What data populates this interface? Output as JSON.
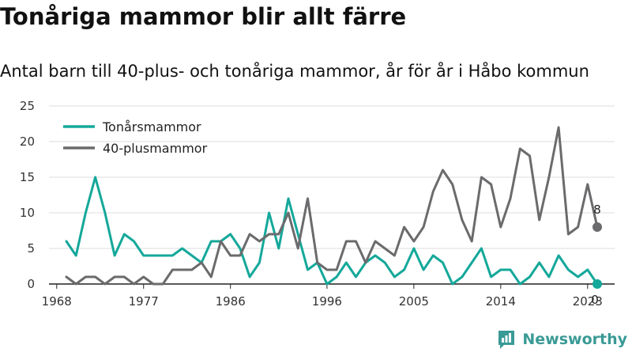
{
  "title": "Tonåriga mammor blir allt färre",
  "subtitle": "Antal barn till 40-plus- och tonåriga mammor, år för år i Håbo kommun",
  "brand": {
    "name": "Newsworthy",
    "icon": "newsworthy-logo-icon",
    "color": "#3a9a96"
  },
  "chart_data": {
    "type": "line",
    "title": "",
    "xlabel": "",
    "ylabel": "",
    "ylim": [
      0,
      25
    ],
    "y_ticks": [
      "0",
      "5",
      "10",
      "15",
      "20",
      "25"
    ],
    "x_ticks": [
      "1968",
      "1977",
      "1986",
      "1996",
      "2005",
      "2014",
      "2023"
    ],
    "grid": true,
    "legend_position": "top-left",
    "series": [
      {
        "name": "Tonårsmammor",
        "color": "#14a89a",
        "x": [
          1969,
          1970,
          1971,
          1972,
          1973,
          1974,
          1975,
          1976,
          1977,
          1978,
          1979,
          1980,
          1981,
          1982,
          1983,
          1984,
          1985,
          1986,
          1987,
          1988,
          1989,
          1990,
          1991,
          1992,
          1993,
          1994,
          1995,
          1996,
          1997,
          1998,
          1999,
          2000,
          2001,
          2002,
          2003,
          2004,
          2005,
          2006,
          2007,
          2008,
          2009,
          2010,
          2011,
          2012,
          2013,
          2014,
          2015,
          2016,
          2017,
          2018,
          2019,
          2020,
          2021,
          2022,
          2023,
          2024
        ],
        "values": [
          6,
          4,
          10,
          15,
          10,
          4,
          7,
          6,
          4,
          4,
          4,
          4,
          5,
          4,
          3,
          6,
          6,
          7,
          5,
          1,
          3,
          10,
          5,
          12,
          7,
          2,
          3,
          0,
          1,
          3,
          1,
          3,
          4,
          3,
          1,
          2,
          5,
          2,
          4,
          3,
          0,
          1,
          3,
          5,
          1,
          2,
          2,
          0,
          1,
          3,
          1,
          4,
          2,
          1,
          2,
          0
        ],
        "end_label": "0"
      },
      {
        "name": "40-plusmammor",
        "color": "#6b6b6d",
        "x": [
          1969,
          1970,
          1971,
          1972,
          1973,
          1974,
          1975,
          1976,
          1977,
          1978,
          1979,
          1980,
          1981,
          1982,
          1983,
          1984,
          1985,
          1986,
          1987,
          1988,
          1989,
          1990,
          1991,
          1992,
          1993,
          1994,
          1995,
          1996,
          1997,
          1998,
          1999,
          2000,
          2001,
          2002,
          2003,
          2004,
          2005,
          2006,
          2007,
          2008,
          2009,
          2010,
          2011,
          2012,
          2013,
          2014,
          2015,
          2016,
          2017,
          2018,
          2019,
          2020,
          2021,
          2022,
          2023,
          2024
        ],
        "values": [
          1,
          0,
          1,
          1,
          0,
          1,
          1,
          0,
          1,
          0,
          0,
          2,
          2,
          2,
          3,
          1,
          6,
          4,
          4,
          7,
          6,
          7,
          7,
          10,
          5,
          12,
          3,
          2,
          2,
          6,
          6,
          3,
          6,
          5,
          4,
          8,
          6,
          8,
          13,
          16,
          14,
          9,
          6,
          15,
          14,
          8,
          12,
          19,
          18,
          9,
          15,
          22,
          7,
          8,
          14,
          8
        ],
        "end_label": "8"
      }
    ]
  }
}
